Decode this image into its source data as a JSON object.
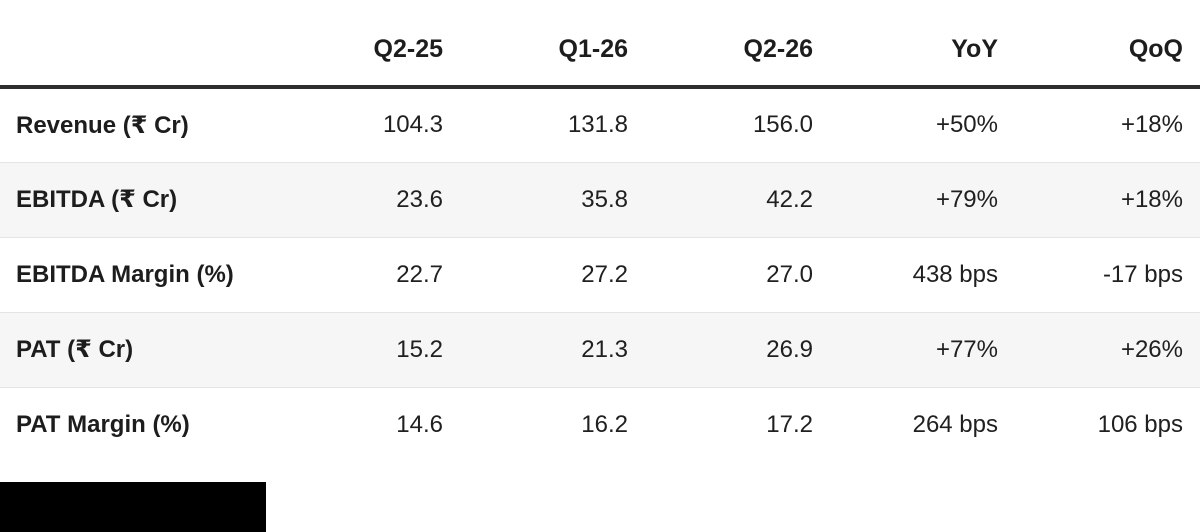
{
  "chart_data": {
    "type": "table",
    "title": "",
    "columns": [
      "",
      "Q2-25",
      "Q1-26",
      "Q2-26",
      "YoY",
      "QoQ"
    ],
    "rows": [
      {
        "label": "Revenue (₹ Cr)",
        "values": [
          "104.3",
          "131.8",
          "156.0",
          "+50%",
          "+18%"
        ]
      },
      {
        "label": "EBITDA (₹ Cr)",
        "values": [
          "23.6",
          "35.8",
          "42.2",
          "+79%",
          "+18%"
        ]
      },
      {
        "label": "EBITDA Margin (%)",
        "values": [
          "22.7",
          "27.2",
          "27.0",
          "438 bps",
          "-17 bps"
        ]
      },
      {
        "label": "PAT (₹ Cr)",
        "values": [
          "15.2",
          "21.3",
          "26.9",
          "+77%",
          "+26%"
        ]
      },
      {
        "label": "PAT Margin (%)",
        "values": [
          "14.6",
          "16.2",
          "17.2",
          "264 bps",
          "106 bps"
        ]
      }
    ],
    "layout": {
      "striped_rows": [
        1,
        3
      ],
      "header_rule": true,
      "grid": "horizontal-only"
    }
  },
  "colors": {
    "text": "#1e1e1e",
    "header_rule": "#2e2e2e",
    "row_separator": "#e4e4e4",
    "stripe": "#f6f6f6",
    "redaction_block": "#000000",
    "background": "#ffffff"
  }
}
